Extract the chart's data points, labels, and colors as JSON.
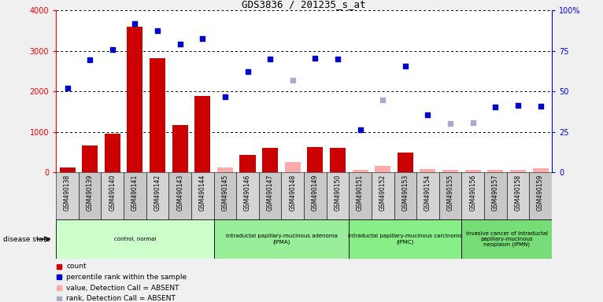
{
  "title": "GDS3836 / 201235_s_at",
  "samples": [
    "GSM490138",
    "GSM490139",
    "GSM490140",
    "GSM490141",
    "GSM490142",
    "GSM490143",
    "GSM490144",
    "GSM490145",
    "GSM490146",
    "GSM490147",
    "GSM490148",
    "GSM490149",
    "GSM490150",
    "GSM490151",
    "GSM490152",
    "GSM490153",
    "GSM490154",
    "GSM490155",
    "GSM490156",
    "GSM490157",
    "GSM490158",
    "GSM490159"
  ],
  "count_values": [
    120,
    650,
    950,
    3600,
    2820,
    1170,
    1890,
    110,
    420,
    610,
    250,
    630,
    610,
    60,
    150,
    490,
    80,
    60,
    60,
    60,
    60,
    100
  ],
  "count_absent": [
    false,
    false,
    false,
    false,
    false,
    false,
    false,
    true,
    false,
    false,
    true,
    false,
    false,
    true,
    true,
    false,
    true,
    true,
    true,
    true,
    true,
    true
  ],
  "rank_values": [
    2080,
    2790,
    3040,
    3670,
    3510,
    3180,
    3310,
    1870,
    2490,
    2800,
    2270,
    2830,
    2800,
    1040,
    1780,
    2630,
    1410,
    1200,
    1220,
    1620,
    1650,
    1640
  ],
  "rank_absent": [
    false,
    false,
    false,
    false,
    false,
    false,
    false,
    false,
    false,
    false,
    true,
    false,
    false,
    false,
    true,
    false,
    false,
    true,
    true,
    false,
    false,
    false
  ],
  "ylim": [
    0,
    4000
  ],
  "left_ticks": [
    0,
    1000,
    2000,
    3000,
    4000
  ],
  "right_tick_positions": [
    0,
    1000,
    2000,
    3000,
    4000
  ],
  "right_tick_labels": [
    "0",
    "25",
    "50",
    "75",
    "100%"
  ],
  "groups": [
    {
      "label": "control, normal",
      "start": 0,
      "end": 6
    },
    {
      "label": "intraductal papillary-mucinous adenoma\n(IPMA)",
      "start": 7,
      "end": 12
    },
    {
      "label": "intraductal papillary-mucinous carcinoma\n(IPMC)",
      "start": 13,
      "end": 17
    },
    {
      "label": "invasive cancer of intraductal\npapillary-mucinous\nneoplasm (IPMN)",
      "start": 18,
      "end": 21
    }
  ],
  "group_colors": [
    "#ccffcc",
    "#99ee99",
    "#88ee88",
    "#77dd77"
  ],
  "bar_color_present": "#cc0000",
  "bar_color_absent": "#ffaaaa",
  "rank_color_present": "#0000cc",
  "rank_color_absent": "#aaaacc",
  "col_bg_even": "#d4d4d4",
  "col_bg_odd": "#c8c8c8",
  "plot_bg": "#ffffff",
  "fig_bg": "#f0f0f0",
  "legend_items": [
    {
      "color": "#cc0000",
      "label": "count"
    },
    {
      "color": "#0000cc",
      "label": "percentile rank within the sample"
    },
    {
      "color": "#ffaaaa",
      "label": "value, Detection Call = ABSENT"
    },
    {
      "color": "#aaaacc",
      "label": "rank, Detection Call = ABSENT"
    }
  ]
}
